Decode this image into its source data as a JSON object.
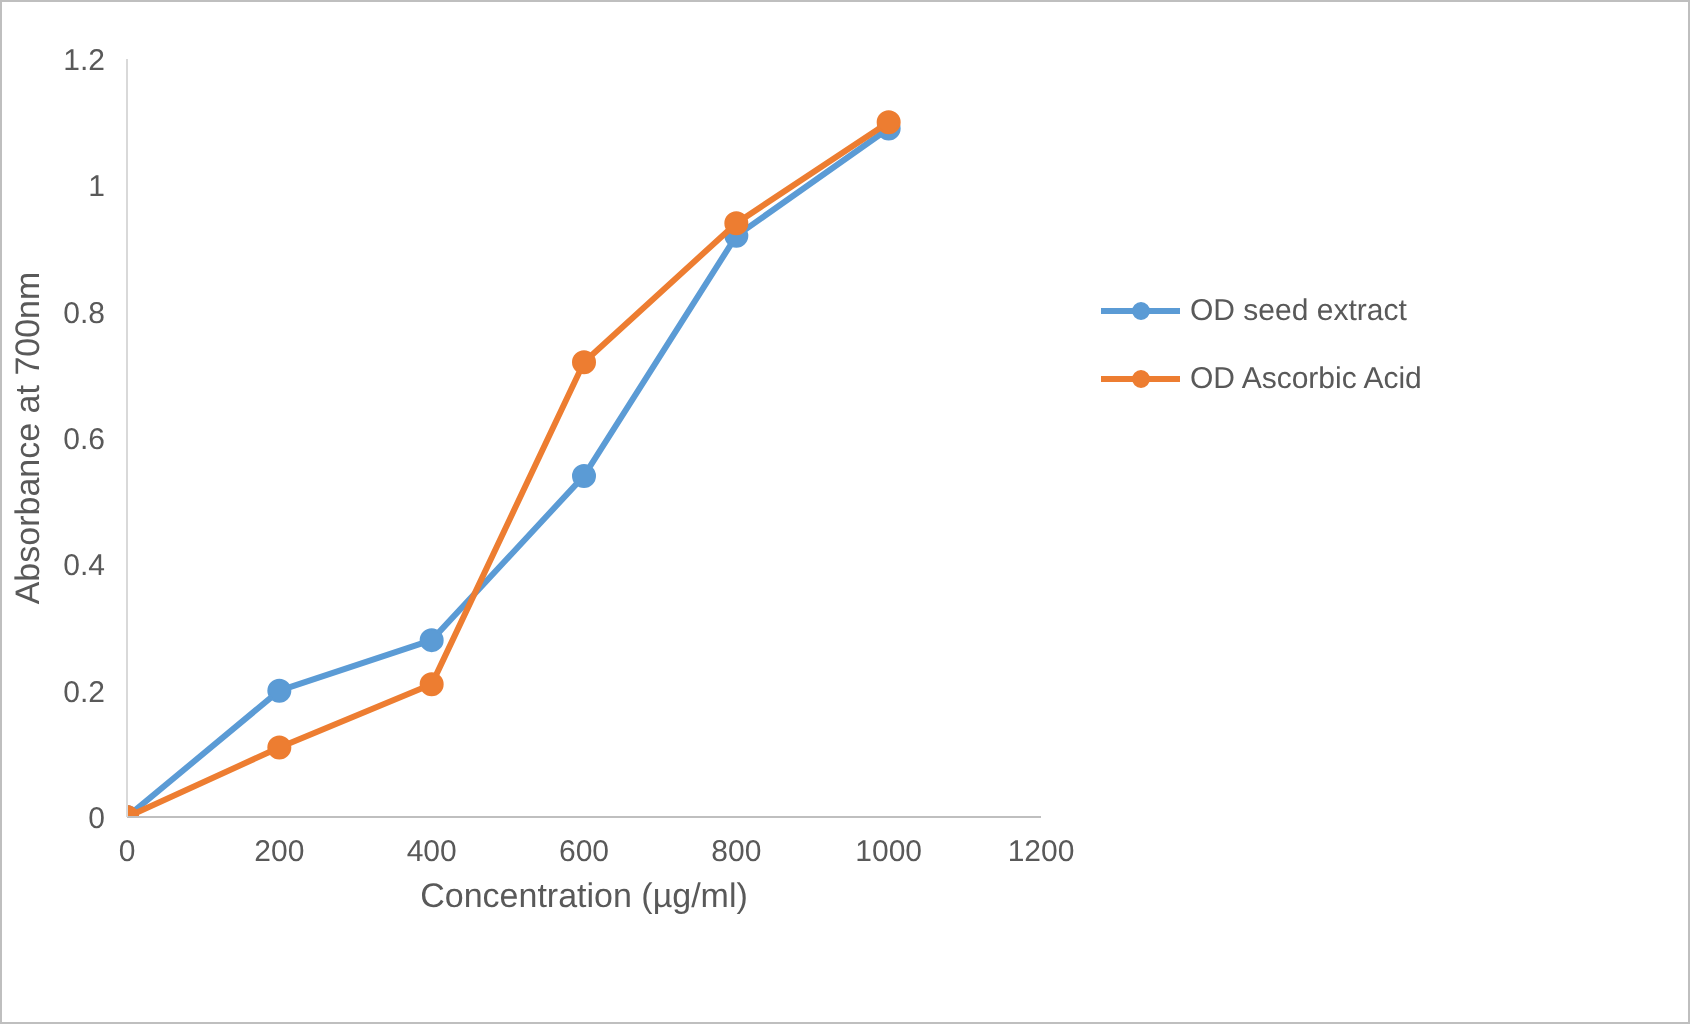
{
  "chart_data": {
    "type": "line",
    "xlabel": "Concentration (µg/ml)",
    "ylabel": "Absorbance at 700nm",
    "x": [
      0,
      200,
      400,
      600,
      800,
      1000
    ],
    "series": [
      {
        "name": "OD seed extract",
        "color": "#5b9bd5",
        "values": [
          0,
          0.2,
          0.28,
          0.54,
          0.92,
          1.09
        ]
      },
      {
        "name": "OD Ascorbic Acid",
        "color": "#ed7d31",
        "values": [
          0,
          0.11,
          0.21,
          0.72,
          0.94,
          1.1
        ]
      }
    ],
    "xlim": [
      0,
      1200
    ],
    "xticks": [
      0,
      200,
      400,
      600,
      800,
      1000,
      1200
    ],
    "ylim": [
      0,
      1.2
    ],
    "yticks": [
      0,
      0.2,
      0.4,
      0.6,
      0.8,
      1,
      1.2
    ],
    "grid": false,
    "legend": "right",
    "marker": "circle",
    "line_style": "solid"
  }
}
